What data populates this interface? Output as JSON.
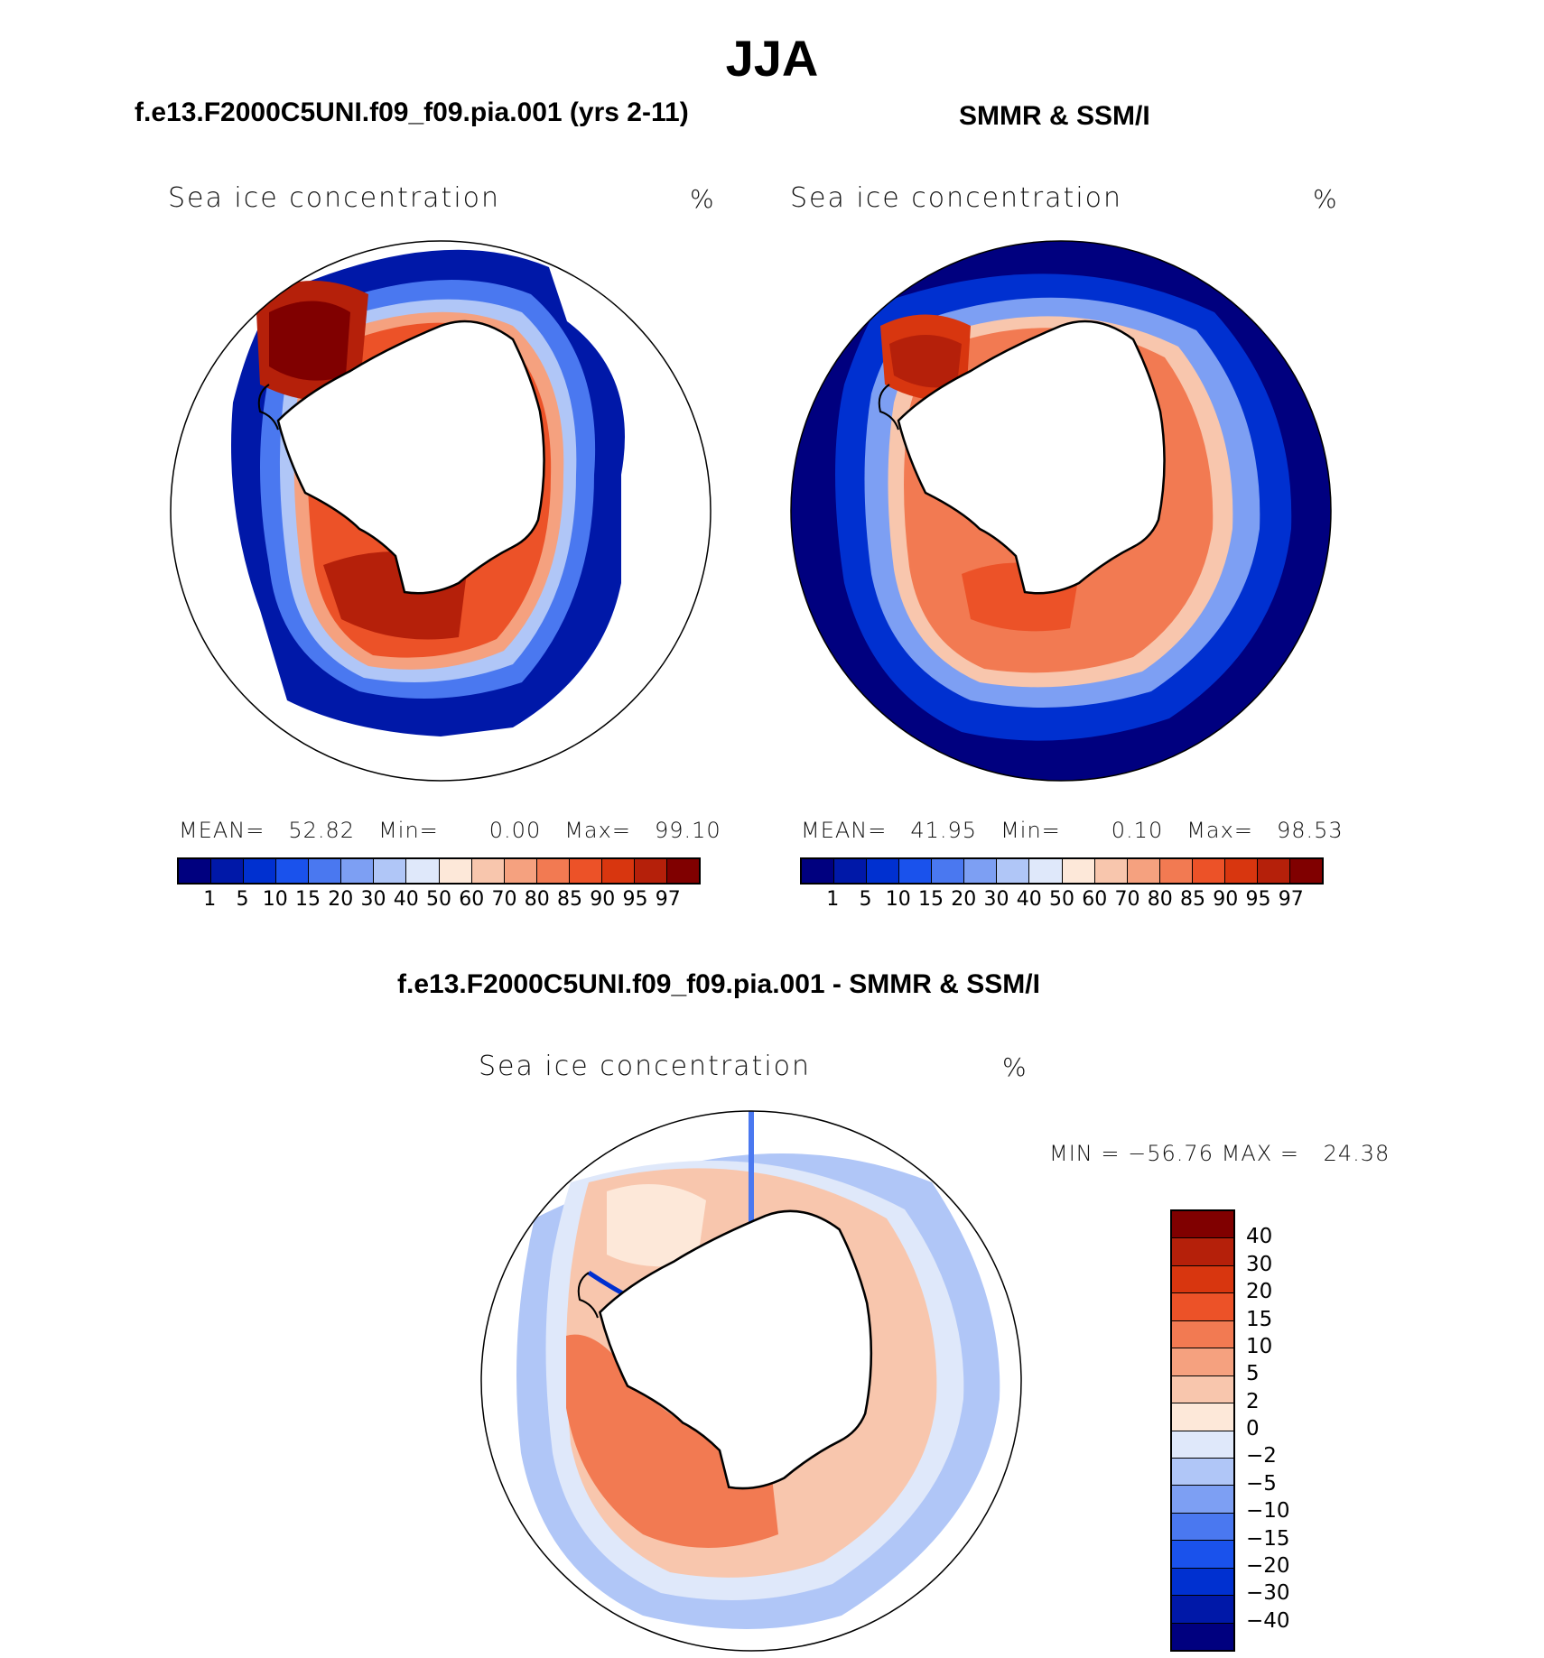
{
  "figure": {
    "season_title": "JJA",
    "panels": [
      {
        "title": "f.e13.F2000C5UNI.f09_f09.pia.001 (yrs 2-11)",
        "variable": "Sea ice concentration",
        "unit": "%",
        "stats": {
          "mean_label": "MEAN=",
          "mean": "52.82",
          "min_label": "Min=",
          "min": "0.00",
          "max_label": "Max=",
          "max": "99.10"
        }
      },
      {
        "title": "SMMR & SSM/I",
        "variable": "Sea ice concentration",
        "unit": "%",
        "stats": {
          "mean_label": "MEAN=",
          "mean": "41.95",
          "min_label": "Min=",
          "min": "0.10",
          "max_label": "Max=",
          "max": "98.53"
        }
      },
      {
        "title": "f.e13.F2000C5UNI.f09_f09.pia.001 - SMMR & SSM/I",
        "variable": "Sea ice concentration",
        "unit": "%",
        "stats": {
          "min_label": "MIN",
          "eq": "=",
          "min": "−56.76",
          "max_label": "MAX",
          "max": "24.38"
        }
      }
    ],
    "colorbar_concentration": {
      "colors": [
        "#00007f",
        "#0018a8",
        "#0030d0",
        "#1a52ec",
        "#4a78f0",
        "#7d9ff3",
        "#b0c6f7",
        "#dfe8fa",
        "#fde8d9",
        "#f8c6ad",
        "#f5a17f",
        "#f27a52",
        "#ec5228",
        "#d8360f",
        "#b5200a",
        "#800000"
      ],
      "labels": [
        "1",
        "5",
        "10",
        "15",
        "20",
        "30",
        "40",
        "50",
        "60",
        "70",
        "80",
        "85",
        "90",
        "95",
        "97"
      ]
    },
    "colorbar_difference": {
      "colors_top_to_bottom": [
        "#800000",
        "#b5200a",
        "#d8360f",
        "#ec5228",
        "#f27a52",
        "#f5a17f",
        "#f8c6ad",
        "#fde8d9",
        "#dfe8fa",
        "#b0c6f7",
        "#7d9ff3",
        "#4a78f0",
        "#1a52ec",
        "#0030d0",
        "#0018a8",
        "#00007f"
      ],
      "labels_top_to_bottom": [
        "40",
        "30",
        "20",
        "15",
        "10",
        "5",
        "2",
        "0",
        "−2",
        "−5",
        "−10",
        "−15",
        "−20",
        "−30",
        "−40"
      ]
    }
  }
}
